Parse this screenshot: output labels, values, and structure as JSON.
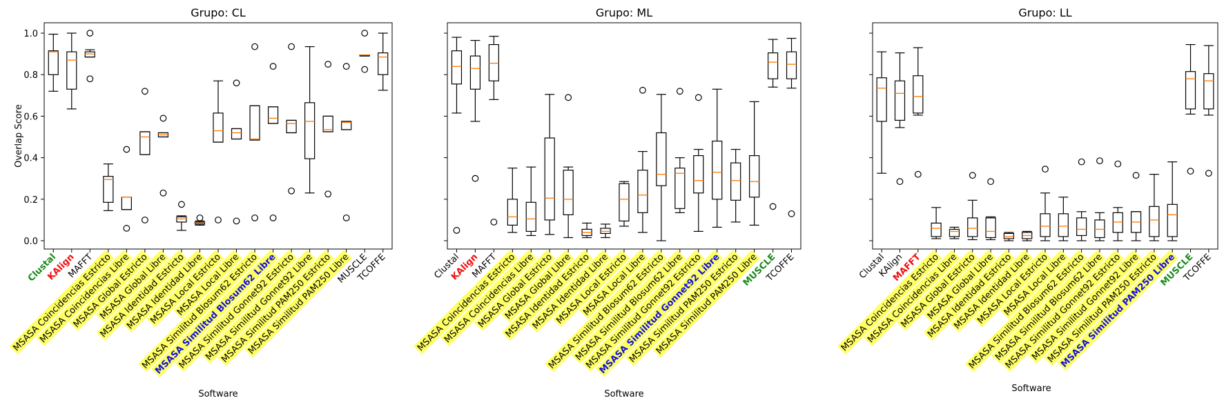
{
  "colors": {
    "median": "#ff7f0e",
    "highlight_bg": "#ffff66",
    "green": "#1a8a1a",
    "red": "#ee1111",
    "blue": "#1111dd"
  },
  "chart_data": [
    {
      "type": "boxplot",
      "title": "Grupo: CL",
      "xlabel": "Software",
      "ylabel": "Overlap Score",
      "ylim": [
        -0.04,
        1.05
      ],
      "yticks": [
        "0.0",
        "0.2",
        "0.4",
        "0.6",
        "0.8",
        "1.0"
      ],
      "categories": [
        {
          "label": "Clustal",
          "style": "green",
          "bg": false
        },
        {
          "label": "KAlign",
          "style": "red",
          "bg": false
        },
        {
          "label": "MAFFT",
          "style": "normal",
          "bg": false
        },
        {
          "label": "MSASA Coincidencias Estricto",
          "style": "normal",
          "bg": true
        },
        {
          "label": "MSASA Coincidencias Libre",
          "style": "normal",
          "bg": true
        },
        {
          "label": "MSASA Global Estricto",
          "style": "normal",
          "bg": true
        },
        {
          "label": "MSASA Global Libre",
          "style": "normal",
          "bg": true
        },
        {
          "label": "MSASA Identidad Estricto",
          "style": "normal",
          "bg": true
        },
        {
          "label": "MSASA Identidad Libre",
          "style": "normal",
          "bg": true
        },
        {
          "label": "MSASA Local Estricto",
          "style": "normal",
          "bg": true
        },
        {
          "label": "MSASA Local Libre",
          "style": "normal",
          "bg": true
        },
        {
          "label": "MSASA Similitud Blosum62 Estricto",
          "style": "normal",
          "bg": true
        },
        {
          "label": "MSASA Similitud Blosum62 Libre",
          "style": "blue",
          "bg": true
        },
        {
          "label": "MSASA Similitud Gonnet92 Estricto",
          "style": "normal",
          "bg": true
        },
        {
          "label": "MSASA Similitud Gonnet92 Libre",
          "style": "normal",
          "bg": true
        },
        {
          "label": "MSASA Similitud PAM250 Estricto",
          "style": "normal",
          "bg": true
        },
        {
          "label": "MSASA Similitud PAM250 Libre",
          "style": "normal",
          "bg": true
        },
        {
          "label": "MUSCLE",
          "style": "normal",
          "bg": false
        },
        {
          "label": "TCOFFE",
          "style": "normal",
          "bg": false
        }
      ],
      "boxes": [
        {
          "wl": 0.72,
          "q1": 0.8,
          "med": 0.91,
          "q3": 0.915,
          "wh": 0.995,
          "fliers": []
        },
        {
          "wl": 0.635,
          "q1": 0.73,
          "med": 0.87,
          "q3": 0.91,
          "wh": 1.0,
          "fliers": []
        },
        {
          "wl": 0.885,
          "q1": 0.885,
          "med": 0.9,
          "q3": 0.91,
          "wh": 0.92,
          "fliers": [
            1.0,
            0.78
          ]
        },
        {
          "wl": 0.145,
          "q1": 0.185,
          "med": 0.295,
          "q3": 0.31,
          "wh": 0.37,
          "fliers": []
        },
        {
          "wl": 0.15,
          "q1": 0.15,
          "med": 0.21,
          "q3": 0.21,
          "wh": 0.21,
          "fliers": [
            0.44,
            0.06
          ]
        },
        {
          "wl": 0.415,
          "q1": 0.415,
          "med": 0.5,
          "q3": 0.525,
          "wh": 0.525,
          "fliers": [
            0.72,
            0.1
          ]
        },
        {
          "wl": 0.5,
          "q1": 0.5,
          "med": 0.51,
          "q3": 0.52,
          "wh": 0.52,
          "fliers": [
            0.59,
            0.23
          ]
        },
        {
          "wl": 0.05,
          "q1": 0.09,
          "med": 0.105,
          "q3": 0.115,
          "wh": 0.12,
          "fliers": [
            0.175
          ]
        },
        {
          "wl": 0.075,
          "q1": 0.08,
          "med": 0.085,
          "q3": 0.09,
          "wh": 0.095,
          "fliers": [
            0.11
          ]
        },
        {
          "wl": 0.475,
          "q1": 0.475,
          "med": 0.53,
          "q3": 0.615,
          "wh": 0.77,
          "fliers": [
            0.1
          ]
        },
        {
          "wl": 0.49,
          "q1": 0.49,
          "med": 0.52,
          "q3": 0.54,
          "wh": 0.54,
          "fliers": [
            0.76,
            0.095
          ]
        },
        {
          "wl": 0.485,
          "q1": 0.485,
          "med": 0.49,
          "q3": 0.65,
          "wh": 0.65,
          "fliers": [
            0.935,
            0.11
          ]
        },
        {
          "wl": 0.565,
          "q1": 0.565,
          "med": 0.59,
          "q3": 0.645,
          "wh": 0.645,
          "fliers": [
            0.84,
            0.11
          ]
        },
        {
          "wl": 0.52,
          "q1": 0.52,
          "med": 0.565,
          "q3": 0.58,
          "wh": 0.58,
          "fliers": [
            0.935,
            0.24
          ]
        },
        {
          "wl": 0.23,
          "q1": 0.395,
          "med": 0.575,
          "q3": 0.665,
          "wh": 0.935,
          "fliers": []
        },
        {
          "wl": 0.525,
          "q1": 0.525,
          "med": 0.535,
          "q3": 0.6,
          "wh": 0.6,
          "fliers": [
            0.85,
            0.225
          ]
        },
        {
          "wl": 0.535,
          "q1": 0.535,
          "med": 0.57,
          "q3": 0.575,
          "wh": 0.575,
          "fliers": [
            0.84,
            0.11
          ]
        },
        {
          "wl": 0.89,
          "q1": 0.89,
          "med": 0.895,
          "q3": 0.895,
          "wh": 0.895,
          "fliers": [
            1.0,
            0.825
          ]
        },
        {
          "wl": 0.725,
          "q1": 0.8,
          "med": 0.885,
          "q3": 0.905,
          "wh": 1.0,
          "fliers": []
        }
      ]
    },
    {
      "type": "boxplot",
      "title": "Grupo: ML",
      "xlabel": "Software",
      "ylabel": "",
      "ylim": [
        -0.04,
        1.05
      ],
      "yticks": [],
      "categories": [
        {
          "label": "Clustal",
          "style": "normal",
          "bg": false
        },
        {
          "label": "KAlign",
          "style": "red",
          "bg": false
        },
        {
          "label": "MAFFT",
          "style": "normal",
          "bg": false
        },
        {
          "label": "MSASA Coincidencias Estricto",
          "style": "normal",
          "bg": true
        },
        {
          "label": "MSASA Coincidencias Libre",
          "style": "normal",
          "bg": true
        },
        {
          "label": "MSASA Global Estricto",
          "style": "normal",
          "bg": true
        },
        {
          "label": "MSASA Global Libre",
          "style": "normal",
          "bg": true
        },
        {
          "label": "MSASA Identidad Estricto",
          "style": "normal",
          "bg": true
        },
        {
          "label": "MSASA Identidad Libre",
          "style": "normal",
          "bg": true
        },
        {
          "label": "MSASA Local Estricto",
          "style": "normal",
          "bg": true
        },
        {
          "label": "MSASA Local Libre",
          "style": "normal",
          "bg": true
        },
        {
          "label": "MSASA Similitud Blosum62 Estricto",
          "style": "normal",
          "bg": true
        },
        {
          "label": "MSASA Similitud Blosum62 Libre",
          "style": "normal",
          "bg": true
        },
        {
          "label": "MSASA Similitud Gonnet92 Estricto",
          "style": "normal",
          "bg": true
        },
        {
          "label": "MSASA Similitud Gonnet92 Libre",
          "style": "blue",
          "bg": true
        },
        {
          "label": "MSASA Similitud PAM250 Estricto",
          "style": "normal",
          "bg": true
        },
        {
          "label": "MSASA Similitud PAM250 Libre",
          "style": "normal",
          "bg": true
        },
        {
          "label": "MUSCLE",
          "style": "green",
          "bg": false
        },
        {
          "label": "TCOFFE",
          "style": "normal",
          "bg": false
        }
      ],
      "boxes": [
        {
          "wl": 0.615,
          "q1": 0.755,
          "med": 0.84,
          "q3": 0.915,
          "wh": 0.98,
          "fliers": [
            0.05
          ]
        },
        {
          "wl": 0.575,
          "q1": 0.73,
          "med": 0.83,
          "q3": 0.89,
          "wh": 0.965,
          "fliers": [
            0.3
          ]
        },
        {
          "wl": 0.68,
          "q1": 0.77,
          "med": 0.855,
          "q3": 0.945,
          "wh": 0.985,
          "fliers": [
            0.09
          ]
        },
        {
          "wl": 0.04,
          "q1": 0.075,
          "med": 0.115,
          "q3": 0.2,
          "wh": 0.35,
          "fliers": []
        },
        {
          "wl": 0.025,
          "q1": 0.045,
          "med": 0.105,
          "q3": 0.185,
          "wh": 0.355,
          "fliers": []
        },
        {
          "wl": 0.03,
          "q1": 0.1,
          "med": 0.205,
          "q3": 0.495,
          "wh": 0.705,
          "fliers": []
        },
        {
          "wl": 0.015,
          "q1": 0.125,
          "med": 0.2,
          "q3": 0.34,
          "wh": 0.355,
          "fliers": [
            0.69
          ]
        },
        {
          "wl": 0.015,
          "q1": 0.025,
          "med": 0.04,
          "q3": 0.055,
          "wh": 0.085,
          "fliers": []
        },
        {
          "wl": 0.015,
          "q1": 0.035,
          "med": 0.045,
          "q3": 0.06,
          "wh": 0.08,
          "fliers": []
        },
        {
          "wl": 0.07,
          "q1": 0.095,
          "med": 0.2,
          "q3": 0.275,
          "wh": 0.285,
          "fliers": []
        },
        {
          "wl": 0.04,
          "q1": 0.135,
          "med": 0.22,
          "q3": 0.34,
          "wh": 0.43,
          "fliers": [
            0.725
          ]
        },
        {
          "wl": 0.0,
          "q1": 0.265,
          "med": 0.32,
          "q3": 0.52,
          "wh": 0.705,
          "fliers": []
        },
        {
          "wl": 0.135,
          "q1": 0.155,
          "med": 0.325,
          "q3": 0.35,
          "wh": 0.4,
          "fliers": [
            0.72
          ]
        },
        {
          "wl": 0.045,
          "q1": 0.23,
          "med": 0.29,
          "q3": 0.41,
          "wh": 0.44,
          "fliers": [
            0.69
          ]
        },
        {
          "wl": 0.065,
          "q1": 0.2,
          "med": 0.33,
          "q3": 0.48,
          "wh": 0.73,
          "fliers": []
        },
        {
          "wl": 0.09,
          "q1": 0.195,
          "med": 0.29,
          "q3": 0.375,
          "wh": 0.44,
          "fliers": []
        },
        {
          "wl": 0.075,
          "q1": 0.21,
          "med": 0.285,
          "q3": 0.41,
          "wh": 0.67,
          "fliers": []
        },
        {
          "wl": 0.74,
          "q1": 0.78,
          "med": 0.86,
          "q3": 0.905,
          "wh": 0.97,
          "fliers": [
            0.165
          ]
        },
        {
          "wl": 0.735,
          "q1": 0.78,
          "med": 0.85,
          "q3": 0.91,
          "wh": 0.975,
          "fliers": [
            0.13
          ]
        }
      ]
    },
    {
      "type": "boxplot",
      "title": "Grupo: LL",
      "xlabel": "Software",
      "ylabel": "",
      "ylim": [
        -0.04,
        1.05
      ],
      "yticks": [],
      "categories": [
        {
          "label": "Clustal",
          "style": "normal",
          "bg": false
        },
        {
          "label": "KAlign",
          "style": "normal",
          "bg": false
        },
        {
          "label": "MAFFT",
          "style": "red",
          "bg": false
        },
        {
          "label": "MSASA Coincidencias Estricto",
          "style": "normal",
          "bg": true
        },
        {
          "label": "MSASA Coincidencias Libre",
          "style": "normal",
          "bg": true
        },
        {
          "label": "MSASA Global Estricto",
          "style": "normal",
          "bg": true
        },
        {
          "label": "MSASA Global Libre",
          "style": "normal",
          "bg": true
        },
        {
          "label": "MSASA Identidad Estricto",
          "style": "normal",
          "bg": true
        },
        {
          "label": "MSASA Identidad Libre",
          "style": "normal",
          "bg": true
        },
        {
          "label": "MSASA Local Estricto",
          "style": "normal",
          "bg": true
        },
        {
          "label": "MSASA Local Libre",
          "style": "normal",
          "bg": true
        },
        {
          "label": "MSASA Similitud Blosum62 Estricto",
          "style": "normal",
          "bg": true
        },
        {
          "label": "MSASA Similitud Blosum62 Libre",
          "style": "normal",
          "bg": true
        },
        {
          "label": "MSASA Similitud Gonnet92 Estricto",
          "style": "normal",
          "bg": true
        },
        {
          "label": "MSASA Similitud Gonnet92 Libre",
          "style": "normal",
          "bg": true
        },
        {
          "label": "MSASA Similitud PAM250 Estricto",
          "style": "normal",
          "bg": true
        },
        {
          "label": "MSASA Similitud PAM250 Libre",
          "style": "blue",
          "bg": true
        },
        {
          "label": "MUSCLE",
          "style": "green",
          "bg": false
        },
        {
          "label": "TCOFFE",
          "style": "normal",
          "bg": false
        }
      ],
      "boxes": [
        {
          "wl": 0.325,
          "q1": 0.575,
          "med": 0.735,
          "q3": 0.785,
          "wh": 0.91,
          "fliers": []
        },
        {
          "wl": 0.545,
          "q1": 0.58,
          "med": 0.71,
          "q3": 0.77,
          "wh": 0.905,
          "fliers": [
            0.285
          ]
        },
        {
          "wl": 0.605,
          "q1": 0.615,
          "med": 0.695,
          "q3": 0.795,
          "wh": 0.93,
          "fliers": [
            0.32
          ]
        },
        {
          "wl": 0.01,
          "q1": 0.02,
          "med": 0.06,
          "q3": 0.085,
          "wh": 0.16,
          "fliers": []
        },
        {
          "wl": 0.01,
          "q1": 0.02,
          "med": 0.045,
          "q3": 0.055,
          "wh": 0.065,
          "fliers": []
        },
        {
          "wl": 0.005,
          "q1": 0.02,
          "med": 0.06,
          "q3": 0.11,
          "wh": 0.195,
          "fliers": [
            0.315
          ]
        },
        {
          "wl": 0.005,
          "q1": 0.015,
          "med": 0.045,
          "q3": 0.11,
          "wh": 0.115,
          "fliers": [
            0.285
          ]
        },
        {
          "wl": 0.0,
          "q1": 0.01,
          "med": 0.02,
          "q3": 0.035,
          "wh": 0.04,
          "fliers": []
        },
        {
          "wl": 0.0,
          "q1": 0.01,
          "med": 0.025,
          "q3": 0.04,
          "wh": 0.045,
          "fliers": []
        },
        {
          "wl": 0.0,
          "q1": 0.02,
          "med": 0.07,
          "q3": 0.13,
          "wh": 0.23,
          "fliers": [
            0.345
          ]
        },
        {
          "wl": 0.0,
          "q1": 0.02,
          "med": 0.07,
          "q3": 0.13,
          "wh": 0.21,
          "fliers": []
        },
        {
          "wl": 0.0,
          "q1": 0.025,
          "med": 0.055,
          "q3": 0.11,
          "wh": 0.14,
          "fliers": [
            0.38
          ]
        },
        {
          "wl": 0.0,
          "q1": 0.015,
          "med": 0.055,
          "q3": 0.1,
          "wh": 0.135,
          "fliers": [
            0.385
          ]
        },
        {
          "wl": 0.0,
          "q1": 0.04,
          "med": 0.09,
          "q3": 0.135,
          "wh": 0.16,
          "fliers": [
            0.37
          ]
        },
        {
          "wl": 0.0,
          "q1": 0.04,
          "med": 0.09,
          "q3": 0.14,
          "wh": 0.14,
          "fliers": [
            0.315
          ]
        },
        {
          "wl": 0.0,
          "q1": 0.02,
          "med": 0.1,
          "q3": 0.165,
          "wh": 0.32,
          "fliers": []
        },
        {
          "wl": 0.0,
          "q1": 0.02,
          "med": 0.125,
          "q3": 0.175,
          "wh": 0.38,
          "fliers": []
        },
        {
          "wl": 0.61,
          "q1": 0.635,
          "med": 0.78,
          "q3": 0.815,
          "wh": 0.945,
          "fliers": [
            0.335
          ]
        },
        {
          "wl": 0.605,
          "q1": 0.635,
          "med": 0.77,
          "q3": 0.805,
          "wh": 0.94,
          "fliers": [
            0.325
          ]
        }
      ]
    }
  ]
}
